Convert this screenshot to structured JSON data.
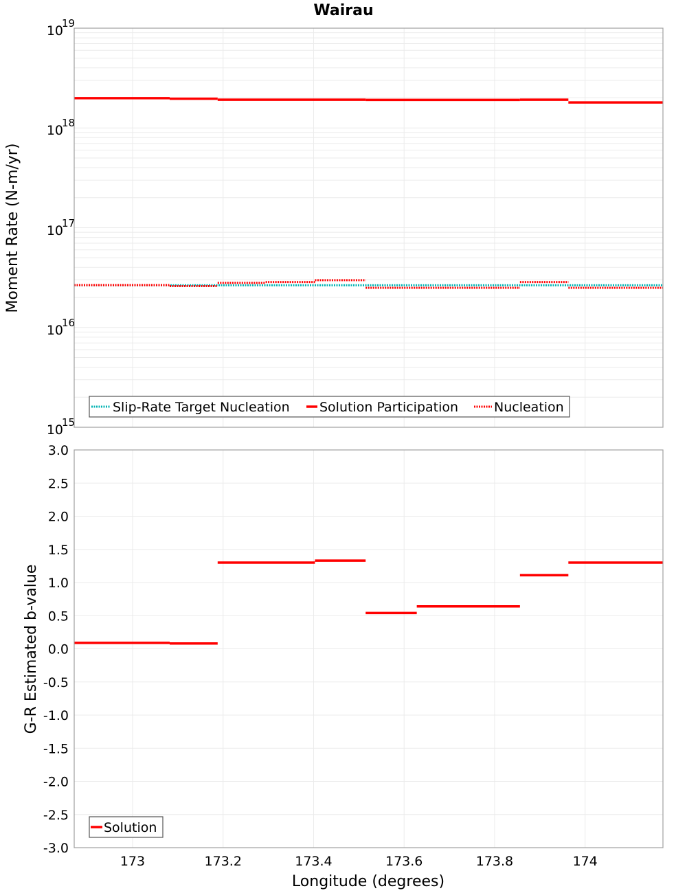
{
  "title": "Wairau",
  "colors": {
    "solution": "#ff0000",
    "nucleation": "#ff0000",
    "target": "#00b3b3",
    "grid": "#ebebeb",
    "frame": "#a0a0a0"
  },
  "chart_data": [
    {
      "type": "line",
      "subtype": "step",
      "title": "Wairau",
      "xlabel": "Longitude (degrees)",
      "ylabel": "Moment Rate (N-m/yr)",
      "yscale": "log",
      "ylim": [
        1000000000000000.0,
        1e+19
      ],
      "xlim": [
        172.871,
        174.172
      ],
      "y_ticks": [
        "10^15",
        "10^16",
        "10^17",
        "10^18",
        "10^19"
      ],
      "grid": true,
      "legend_position": "lower-left",
      "x_edges": [
        172.871,
        173.082,
        173.188,
        173.294,
        173.403,
        173.515,
        173.628,
        173.739,
        173.856,
        173.963,
        174.172
      ],
      "series": [
        {
          "name": "Slip-Rate Target Nucleation",
          "style": "dotted",
          "color": "#00b3b3",
          "x_segments": [
            [
              172.871,
              174.172
            ]
          ],
          "values": [
            2.65e+16
          ]
        },
        {
          "name": "Solution Participation",
          "style": "solid",
          "color": "#ff0000",
          "x_segments": [
            [
              172.871,
              173.082
            ],
            [
              173.082,
              173.188
            ],
            [
              173.188,
              173.515
            ],
            [
              173.515,
              173.856
            ],
            [
              173.856,
              173.963
            ],
            [
              173.963,
              174.172
            ]
          ],
          "values": [
            1.99e+18,
            1.96e+18,
            1.92e+18,
            1.91e+18,
            1.92e+18,
            1.8e+18
          ]
        },
        {
          "name": "Nucleation",
          "style": "dotted",
          "color": "#ff0000",
          "x_segments": [
            [
              172.871,
              173.082
            ],
            [
              173.082,
              173.188
            ],
            [
              173.188,
              173.294
            ],
            [
              173.294,
              173.403
            ],
            [
              173.403,
              173.515
            ],
            [
              173.515,
              173.856
            ],
            [
              173.856,
              173.963
            ],
            [
              173.963,
              174.172
            ]
          ],
          "values": [
            2.66e+16,
            2.6e+16,
            2.8e+16,
            2.85e+16,
            2.98e+16,
            2.5e+16,
            2.85e+16,
            2.5e+16
          ]
        }
      ]
    },
    {
      "type": "line",
      "subtype": "step",
      "title": "",
      "xlabel": "Longitude (degrees)",
      "ylabel": "G-R Estimated b-value",
      "ylim": [
        -3.0,
        3.0
      ],
      "xlim": [
        172.871,
        174.172
      ],
      "x_ticks": [
        "173",
        "173.2",
        "173.4",
        "173.6",
        "173.8",
        "174"
      ],
      "y_ticks": [
        "3.0",
        "2.5",
        "2.0",
        "1.5",
        "1.0",
        "0.5",
        "0.0",
        "-0.5",
        "-1.0",
        "-1.5",
        "-2.0",
        "-2.5",
        "-3.0"
      ],
      "grid": true,
      "legend_position": "lower-left",
      "series": [
        {
          "name": "Solution",
          "style": "solid",
          "color": "#ff0000",
          "x_segments": [
            [
              172.871,
              173.082
            ],
            [
              173.082,
              173.188
            ],
            [
              173.188,
              173.403
            ],
            [
              173.403,
              173.515
            ],
            [
              173.515,
              173.628
            ],
            [
              173.628,
              173.856
            ],
            [
              173.856,
              173.963
            ],
            [
              173.963,
              174.172
            ]
          ],
          "values": [
            0.09,
            0.08,
            1.3,
            1.33,
            0.54,
            0.64,
            1.11,
            1.3
          ]
        }
      ]
    }
  ],
  "top_plot": {
    "ylabel": "Moment Rate (N-m/yr)",
    "y_ticks": [
      {
        "base": "10",
        "exp": "19"
      },
      {
        "base": "10",
        "exp": "18"
      },
      {
        "base": "10",
        "exp": "17"
      },
      {
        "base": "10",
        "exp": "16"
      },
      {
        "base": "10",
        "exp": "15"
      }
    ],
    "legend": [
      "Slip-Rate Target Nucleation",
      "Solution Participation",
      "Nucleation"
    ]
  },
  "bottom_plot": {
    "ylabel": "G-R Estimated b-value",
    "xlabel": "Longitude (degrees)",
    "y_ticks": [
      "3.0",
      "2.5",
      "2.0",
      "1.5",
      "1.0",
      "0.5",
      "0.0",
      "-0.5",
      "-1.0",
      "-1.5",
      "-2.0",
      "-2.5",
      "-3.0"
    ],
    "x_ticks": [
      "173",
      "173.2",
      "173.4",
      "173.6",
      "173.8",
      "174"
    ],
    "legend": [
      "Solution"
    ]
  }
}
